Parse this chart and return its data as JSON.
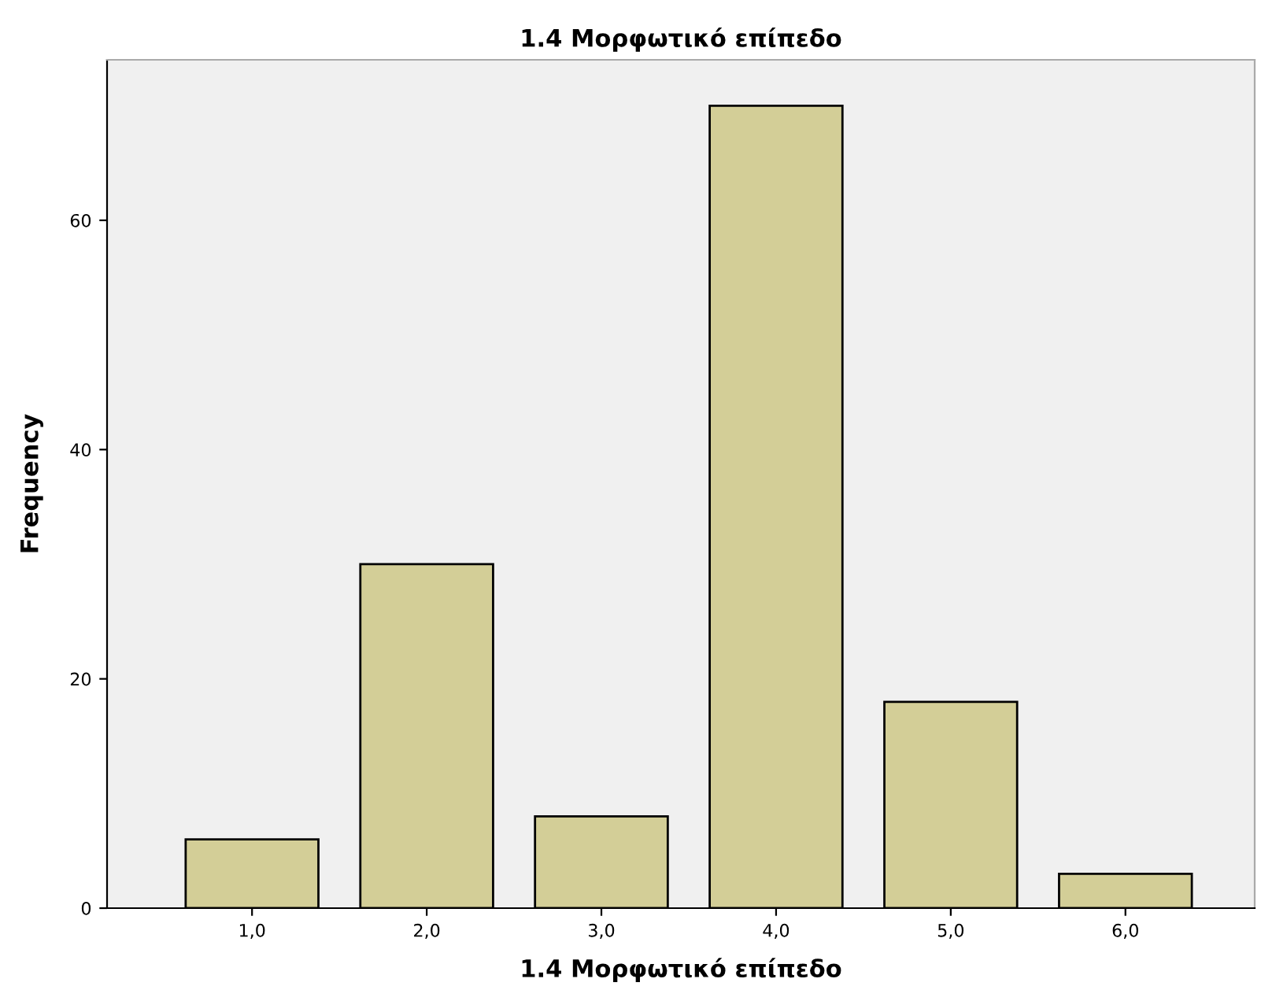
{
  "chart_data": {
    "type": "bar",
    "title": "1.4 Μορφωτικό επίπεδο",
    "xlabel": "1.4 Μορφωτικό επίπεδο",
    "ylabel": "Frequency",
    "categories": [
      "1,0",
      "2,0",
      "3,0",
      "4,0",
      "5,0",
      "6,0"
    ],
    "values": [
      6,
      30,
      8,
      70,
      18,
      3
    ],
    "color": "#d3ce97",
    "ylim": [
      0,
      74
    ],
    "yticks": [
      0,
      20,
      40,
      60
    ],
    "grid": false,
    "legend": false
  }
}
